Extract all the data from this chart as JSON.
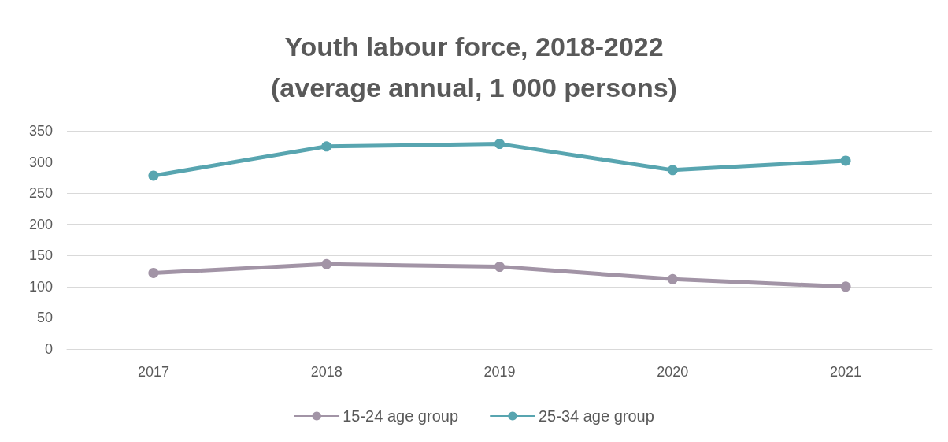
{
  "chart_data": {
    "type": "line",
    "title": "Youth labour force, 2018-2022\n(average annual, 1 000 persons)",
    "categories": [
      "2017",
      "2018",
      "2019",
      "2020",
      "2021"
    ],
    "series": [
      {
        "name": "15-24 age group",
        "color": "#a294a6",
        "values": [
          122,
          136,
          132,
          112,
          100
        ]
      },
      {
        "name": "25-34 age group",
        "color": "#58a5b0",
        "values": [
          278,
          325,
          329,
          287,
          302
        ]
      }
    ],
    "ylim": [
      0,
      350
    ],
    "yticks": [
      0,
      50,
      100,
      150,
      200,
      250,
      300,
      350
    ],
    "grid": "y",
    "legend": "bottom",
    "marker": "circle",
    "line_style": "solid"
  }
}
